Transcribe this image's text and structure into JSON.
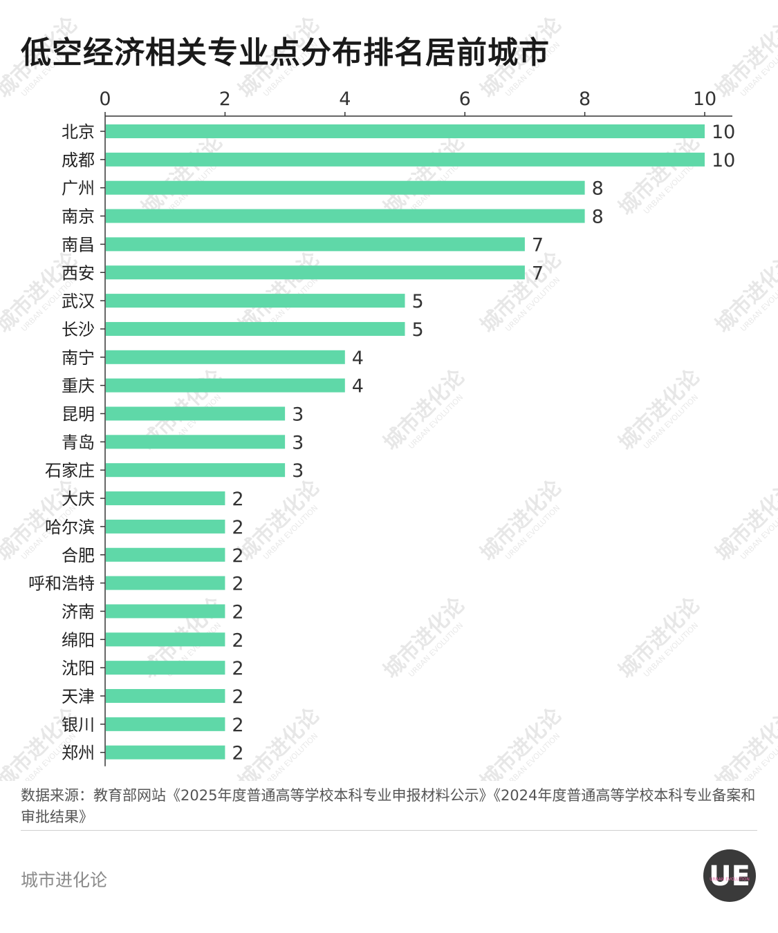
{
  "title": "低空经济相关专业点分布排名居前城市",
  "chart_data": {
    "type": "bar",
    "orientation": "horizontal",
    "categories": [
      "北京",
      "成都",
      "广州",
      "南京",
      "南昌",
      "西安",
      "武汉",
      "长沙",
      "南宁",
      "重庆",
      "昆明",
      "青岛",
      "石家庄",
      "大庆",
      "哈尔滨",
      "合肥",
      "呼和浩特",
      "济南",
      "绵阳",
      "沈阳",
      "天津",
      "银川",
      "郑州"
    ],
    "values": [
      10,
      10,
      8,
      8,
      7,
      7,
      5,
      5,
      4,
      4,
      3,
      3,
      3,
      2,
      2,
      2,
      2,
      2,
      2,
      2,
      2,
      2,
      2
    ],
    "x_ticks": [
      0,
      2,
      4,
      6,
      8,
      10
    ],
    "xlim": [
      0,
      10
    ],
    "axis_position": "top",
    "bar_color": "#5fd8a8",
    "data_labels": true,
    "grid": false
  },
  "source": "数据来源：教育部网站《2025年度普通高等学校本科专业申报材料公示》《2024年度普通高等学校本科专业备案和审批结果》",
  "footer": {
    "brand": "城市进化论",
    "logo_text": "UE",
    "logo_sub": "URBAN EVOLUTION"
  },
  "watermark": {
    "main": "城市进化论",
    "sub": "URBAN EVOLUTION"
  }
}
